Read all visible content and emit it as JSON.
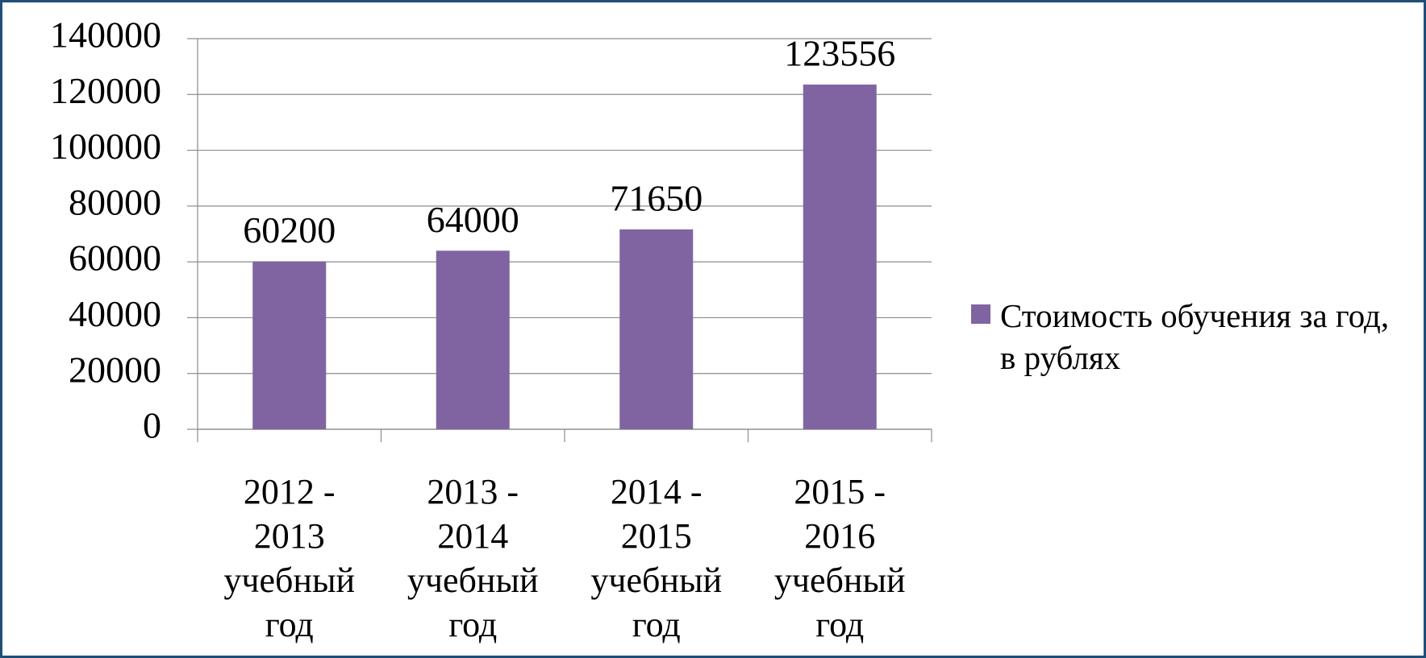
{
  "chart_data": {
    "type": "bar",
    "categories": [
      "2012 - 2013 учебный год",
      "2013 - 2014 учебный год",
      "2014 - 2015 учебный год",
      "2015 - 2016 учебный год"
    ],
    "series": [
      {
        "name": "Стоимость обучения за год, в рублях",
        "color": "#8064a2",
        "values": [
          60200,
          64000,
          71650,
          123556
        ]
      }
    ],
    "ylim": [
      0,
      140000
    ],
    "yticks": [
      0,
      20000,
      40000,
      60000,
      80000,
      100000,
      120000,
      140000
    ],
    "grid": true,
    "legend": "right"
  }
}
